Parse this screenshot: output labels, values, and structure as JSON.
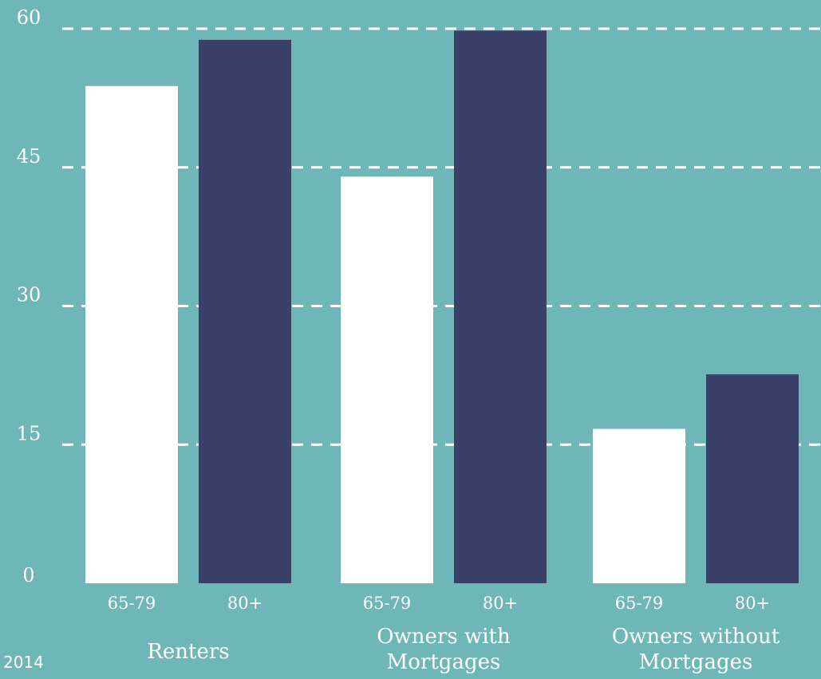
{
  "chart_data": {
    "type": "bar",
    "groups": [
      {
        "label": [
          "Renters"
        ],
        "categories": [
          "65-79",
          "80+"
        ],
        "values": [
          53.8,
          58.8
        ]
      },
      {
        "label": [
          "Owners with",
          "Mortgages"
        ],
        "categories": [
          "65-79",
          "80+"
        ],
        "values": [
          44.0,
          59.8
        ]
      },
      {
        "label": [
          "Owners without",
          "Mortgages"
        ],
        "categories": [
          "65-79",
          "80+"
        ],
        "values": [
          16.7,
          22.6
        ]
      }
    ],
    "ylim": [
      0,
      60
    ],
    "yticks": [
      "0",
      "15",
      "30",
      "45",
      "60"
    ],
    "grid": true,
    "colors": {
      "65-79": "#ffffff",
      "80+": "#3b4069",
      "background": "#6fb6b9"
    },
    "footnote": "2014"
  }
}
